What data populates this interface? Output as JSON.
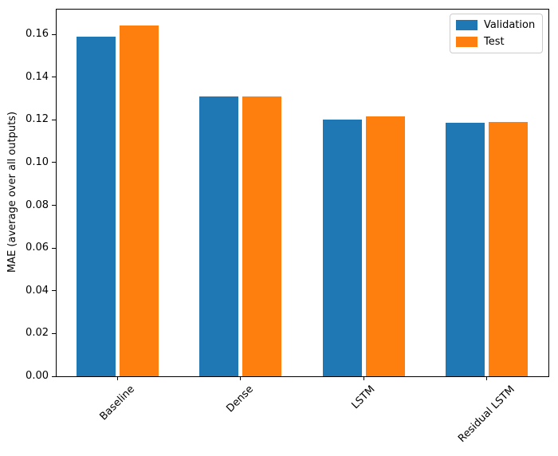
{
  "chart_data": {
    "type": "bar",
    "title": "",
    "xlabel": "",
    "ylabel": "MAE (average over all outputs)",
    "categories": [
      "Baseline",
      "Dense",
      "LSTM",
      "Residual LSTM"
    ],
    "series": [
      {
        "name": "Validation",
        "color": "#1f77b4",
        "values": [
          0.159,
          0.131,
          0.12,
          0.1185
        ]
      },
      {
        "name": "Test",
        "color": "#ff7f0e",
        "values": [
          0.164,
          0.131,
          0.1215,
          0.119
        ]
      }
    ],
    "ylim": [
      0,
      0.172
    ],
    "yticks": [
      0.0,
      0.02,
      0.04,
      0.06,
      0.08,
      0.1,
      0.12,
      0.14,
      0.16
    ],
    "ytick_labels": [
      "0.00",
      "0.02",
      "0.04",
      "0.06",
      "0.08",
      "0.10",
      "0.12",
      "0.14",
      "0.16"
    ],
    "xtick_rotation": 45,
    "grid": false,
    "legend_position": "upper right",
    "colors": {
      "spine": "#000000",
      "legend_border": "#cccccc",
      "background": "#ffffff"
    }
  }
}
